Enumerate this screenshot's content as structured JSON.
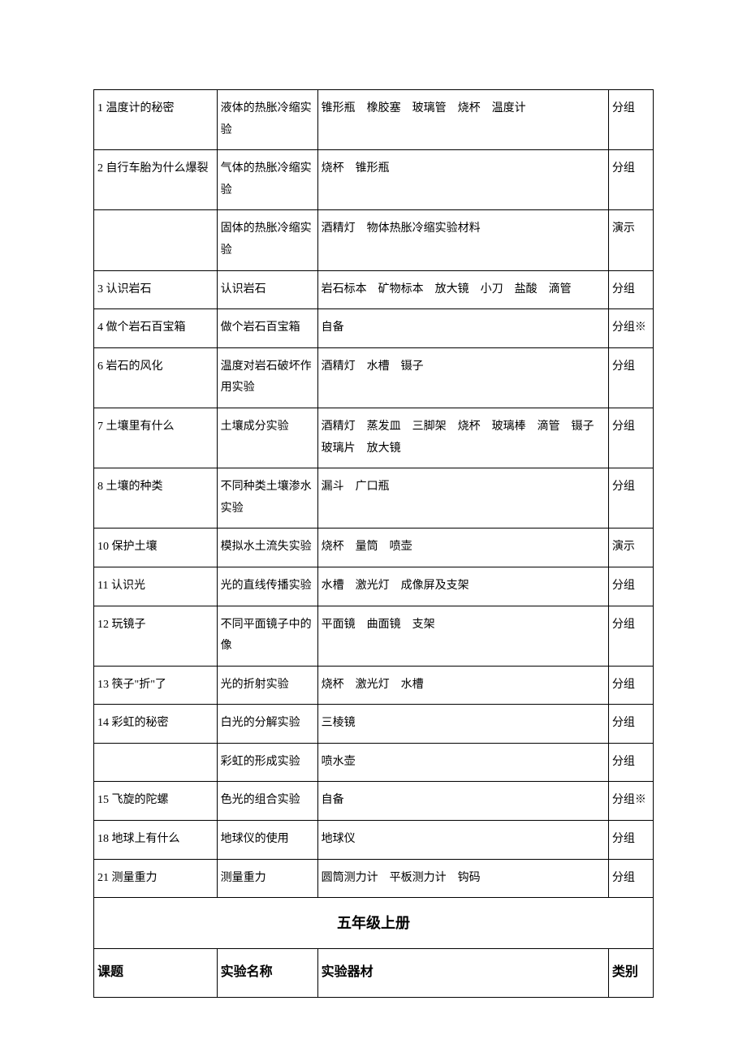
{
  "rows": [
    {
      "c1": "1 温度计的秘密",
      "c2": "液体的热胀冷缩实验",
      "c3": "锥形瓶　橡胶塞　玻璃管　烧杯　温度计",
      "c4": "分组"
    },
    {
      "c1": "2 自行车胎为什么爆裂",
      "c2": "气体的热胀冷缩实验",
      "c3": "烧杯　锥形瓶",
      "c4": "分组"
    },
    {
      "c1": "",
      "c2": "固体的热胀冷缩实验",
      "c3": "酒精灯　物体热胀冷缩实验材料",
      "c4": "演示"
    },
    {
      "c1": "3 认识岩石",
      "c2": "认识岩石",
      "c3": "岩石标本　矿物标本　放大镜　小刀　盐酸　滴管",
      "c4": "分组"
    },
    {
      "c1": "4 做个岩石百宝箱",
      "c2": "做个岩石百宝箱",
      "c3": "自备",
      "c4": "分组※"
    },
    {
      "c1": "6 岩石的风化",
      "c2": "温度对岩石破坏作用实验",
      "c3": "酒精灯　水槽　镊子",
      "c4": "分组"
    },
    {
      "c1": "7 土壤里有什么",
      "c2": "土壤成分实验",
      "c3": "酒精灯　蒸发皿　三脚架　烧杯　玻璃棒　滴管　镊子　玻璃片　放大镜",
      "c4": "分组"
    },
    {
      "c1": "8 土壤的种类",
      "c2": "不同种类土壤渗水实验",
      "c3": "漏斗　广口瓶",
      "c4": "分组"
    },
    {
      "c1": "10 保护土壤",
      "c2": "模拟水土流失实验",
      "c3": "烧杯　量筒　喷壶",
      "c4": "演示"
    },
    {
      "c1": "11 认识光",
      "c2": "光的直线传播实验",
      "c3": "水槽　激光灯　成像屏及支架",
      "c4": "分组"
    },
    {
      "c1": "12 玩镜子",
      "c2": "不同平面镜子中的像",
      "c3": "平面镜　曲面镜　支架",
      "c4": "分组"
    },
    {
      "c1": "13 筷子\"折\"了",
      "c2": "光的折射实验",
      "c3": "烧杯　激光灯　水槽",
      "c4": "分组"
    },
    {
      "c1": "14 彩虹的秘密",
      "c2": "白光的分解实验",
      "c3": "三棱镜",
      "c4": "分组"
    },
    {
      "c1": "",
      "c2": "彩虹的形成实验",
      "c3": "喷水壶",
      "c4": "分组"
    },
    {
      "c1": "15 飞旋的陀螺",
      "c2": "色光的组合实验",
      "c3": "自备",
      "c4": "分组※"
    },
    {
      "c1": "18 地球上有什么",
      "c2": "地球仪的使用",
      "c3": "地球仪",
      "c4": "分组"
    },
    {
      "c1": "21 测量重力",
      "c2": "测量重力",
      "c3": "圆筒测力计　平板测力计　钩码",
      "c4": "分组"
    }
  ],
  "sectionTitle": "五年级上册",
  "headers": {
    "c1": "课题",
    "c2": "实验名称",
    "c3": "实验器材",
    "c4": "类别"
  }
}
